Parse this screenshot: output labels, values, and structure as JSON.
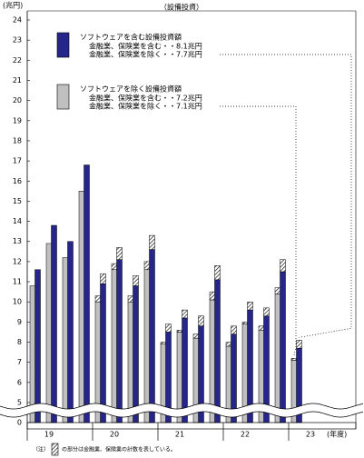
{
  "chart_data": {
    "type": "bar",
    "title": "（設備投資）",
    "y_unit": "(兆円)",
    "x_label": "(年度)",
    "note_prefix": "（注）",
    "note": "の部分は金融業、保険業の計数を表している。",
    "categories": [
      "19",
      null,
      null,
      null,
      "20",
      null,
      null,
      null,
      "21",
      null,
      null,
      null,
      "22",
      null,
      null,
      null,
      "23",
      null,
      null,
      null
    ],
    "series": [
      {
        "name": "ソフトウェアを除く設備投資額",
        "color": "#c0c0c0",
        "legend_lines": [
          "金融業、保険業を含む・・7.2兆円",
          "金融業、保険業を除く・・7.1兆円"
        ],
        "values": [
          10.8,
          12.9,
          12.2,
          15.5,
          10.0,
          11.6,
          10.0,
          11.6,
          7.9,
          8.5,
          8.2,
          10.1,
          7.8,
          8.9,
          8.6,
          10.4,
          7.1,
          null,
          null,
          null
        ],
        "hatch_values": [
          null,
          null,
          null,
          null,
          0.3,
          0.3,
          0.3,
          0.4,
          0.1,
          0.1,
          0.2,
          0.4,
          0.2,
          0.1,
          0.2,
          0.3,
          0.1,
          null,
          null,
          null
        ]
      },
      {
        "name": "ソフトウェアを含む設備投資額",
        "color": "#26268a",
        "legend_lines": [
          "金融業、保険業を含む・・8.1兆円",
          "金融業、保険業を除く・・7.7兆円"
        ],
        "values": [
          11.6,
          13.8,
          13.0,
          16.8,
          10.9,
          12.1,
          10.8,
          12.6,
          8.5,
          9.2,
          8.8,
          11.1,
          8.4,
          9.6,
          9.3,
          11.5,
          7.7,
          null,
          null,
          null
        ],
        "hatch_values": [
          null,
          null,
          null,
          null,
          0.5,
          0.6,
          0.5,
          0.7,
          0.4,
          0.4,
          0.5,
          0.7,
          0.4,
          0.4,
          0.4,
          0.6,
          0.4,
          null,
          null,
          null
        ]
      }
    ],
    "ylim": [
      0,
      24
    ],
    "yticks": [
      0,
      5,
      6,
      7,
      8,
      9,
      10,
      11,
      12,
      13,
      14,
      15,
      16,
      17,
      18,
      19,
      20,
      21,
      22,
      23,
      24
    ],
    "axis_break": [
      0,
      5
    ],
    "grid": false
  }
}
